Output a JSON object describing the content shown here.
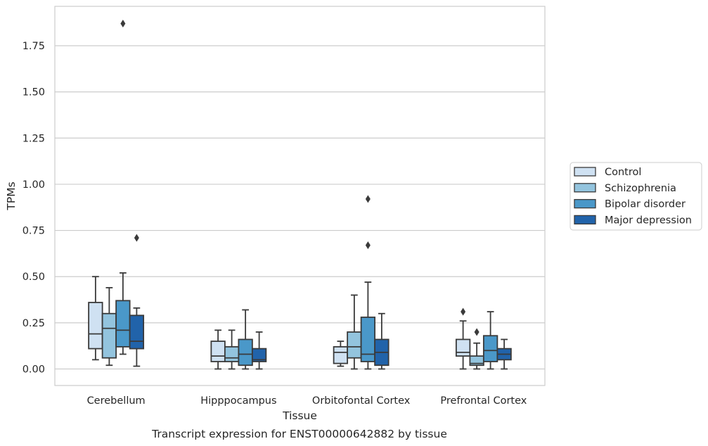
{
  "chart_data": {
    "type": "box",
    "caption": "Transcript expression for ENST00000642882 by tissue",
    "xlabel": "Tissue",
    "ylabel": "TPMs",
    "ylim": [
      -0.09,
      1.97
    ],
    "yticks": [
      0.0,
      0.25,
      0.5,
      0.75,
      1.0,
      1.25,
      1.5,
      1.75
    ],
    "ytick_labels": [
      "0.00",
      "0.25",
      "0.50",
      "0.75",
      "1.00",
      "1.25",
      "1.50",
      "1.75"
    ],
    "grid": "horizontal",
    "legend_position": "right",
    "categories": [
      "Cerebellum",
      "Hipppocampus",
      "Orbitofontal Cortex",
      "Prefrontal Cortex"
    ],
    "series": [
      {
        "name": "Control",
        "color": "#cfe1f2",
        "boxes": [
          {
            "whislo": 0.05,
            "q1": 0.11,
            "med": 0.19,
            "q3": 0.36,
            "whishi": 0.5,
            "fliers": []
          },
          {
            "whislo": 0.0,
            "q1": 0.04,
            "med": 0.07,
            "q3": 0.15,
            "whishi": 0.21,
            "fliers": []
          },
          {
            "whislo": 0.015,
            "q1": 0.03,
            "med": 0.09,
            "q3": 0.12,
            "whishi": 0.15,
            "fliers": []
          },
          {
            "whislo": 0.0,
            "q1": 0.07,
            "med": 0.09,
            "q3": 0.16,
            "whishi": 0.26,
            "fliers": [
              0.31
            ]
          }
        ]
      },
      {
        "name": "Schizophrenia",
        "color": "#93c4de",
        "boxes": [
          {
            "whislo": 0.02,
            "q1": 0.06,
            "med": 0.22,
            "q3": 0.3,
            "whishi": 0.44,
            "fliers": []
          },
          {
            "whislo": 0.0,
            "q1": 0.04,
            "med": 0.06,
            "q3": 0.12,
            "whishi": 0.21,
            "fliers": []
          },
          {
            "whislo": 0.0,
            "q1": 0.06,
            "med": 0.12,
            "q3": 0.2,
            "whishi": 0.4,
            "fliers": []
          },
          {
            "whislo": 0.0,
            "q1": 0.02,
            "med": 0.03,
            "q3": 0.07,
            "whishi": 0.14,
            "fliers": [
              0.2
            ]
          }
        ]
      },
      {
        "name": "Bipolar disorder",
        "color": "#4a98c9",
        "boxes": [
          {
            "whislo": 0.08,
            "q1": 0.12,
            "med": 0.21,
            "q3": 0.37,
            "whishi": 0.52,
            "fliers": [
              1.87
            ]
          },
          {
            "whislo": 0.0,
            "q1": 0.02,
            "med": 0.08,
            "q3": 0.16,
            "whishi": 0.32,
            "fliers": []
          },
          {
            "whislo": 0.0,
            "q1": 0.04,
            "med": 0.08,
            "q3": 0.28,
            "whishi": 0.47,
            "fliers": [
              0.67,
              0.92
            ]
          },
          {
            "whislo": 0.0,
            "q1": 0.04,
            "med": 0.1,
            "q3": 0.18,
            "whishi": 0.31,
            "fliers": []
          }
        ]
      },
      {
        "name": "Major depression",
        "color": "#2163aa",
        "boxes": [
          {
            "whislo": 0.015,
            "q1": 0.11,
            "med": 0.15,
            "q3": 0.29,
            "whishi": 0.33,
            "fliers": [
              0.71
            ]
          },
          {
            "whislo": 0.0,
            "q1": 0.04,
            "med": 0.05,
            "q3": 0.11,
            "whishi": 0.2,
            "fliers": []
          },
          {
            "whislo": 0.0,
            "q1": 0.02,
            "med": 0.09,
            "q3": 0.16,
            "whishi": 0.3,
            "fliers": []
          },
          {
            "whislo": 0.0,
            "q1": 0.05,
            "med": 0.08,
            "q3": 0.11,
            "whishi": 0.16,
            "fliers": []
          }
        ]
      }
    ]
  }
}
